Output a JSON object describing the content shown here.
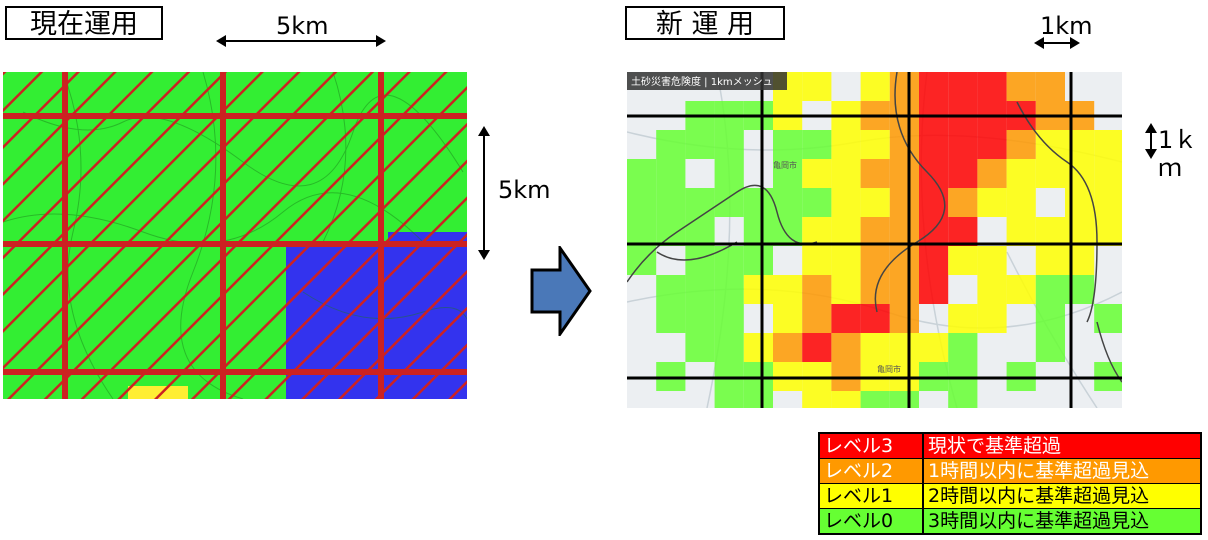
{
  "left_panel": {
    "title": "現在運用",
    "width_label": "5km",
    "height_label": "5km"
  },
  "right_panel": {
    "title": "新 運 用",
    "width_label": "1km",
    "height_label": "1ｋｍ",
    "map_header": "土砂災害危険度 | 1kmメッシュ",
    "place_labels": [
      "亀岡市",
      "亀岡市"
    ]
  },
  "colors": {
    "level3": "#ff0000",
    "level2": "#ff9900",
    "level1": "#ffff00",
    "level0": "#66ff33",
    "current_green": "#33ee33",
    "current_blue": "#3333ee",
    "grid_red": "#cc2222",
    "arrow_blue": "#4a78b8"
  },
  "legend": [
    {
      "level": "レベル3",
      "desc": "現状で基準超過",
      "color": "#ff0000",
      "text_color": "#ffffff"
    },
    {
      "level": "レベル2",
      "desc": "1時間以内に基準超過見込",
      "color": "#ff9900",
      "text_color": "#ffffff"
    },
    {
      "level": "レベル1",
      "desc": "2時間以内に基準超過見込",
      "color": "#ffff00",
      "text_color": "#000000"
    },
    {
      "level": "レベル0",
      "desc": "3時間以内に基準超過見込",
      "color": "#66ff33",
      "text_color": "#000000"
    }
  ]
}
